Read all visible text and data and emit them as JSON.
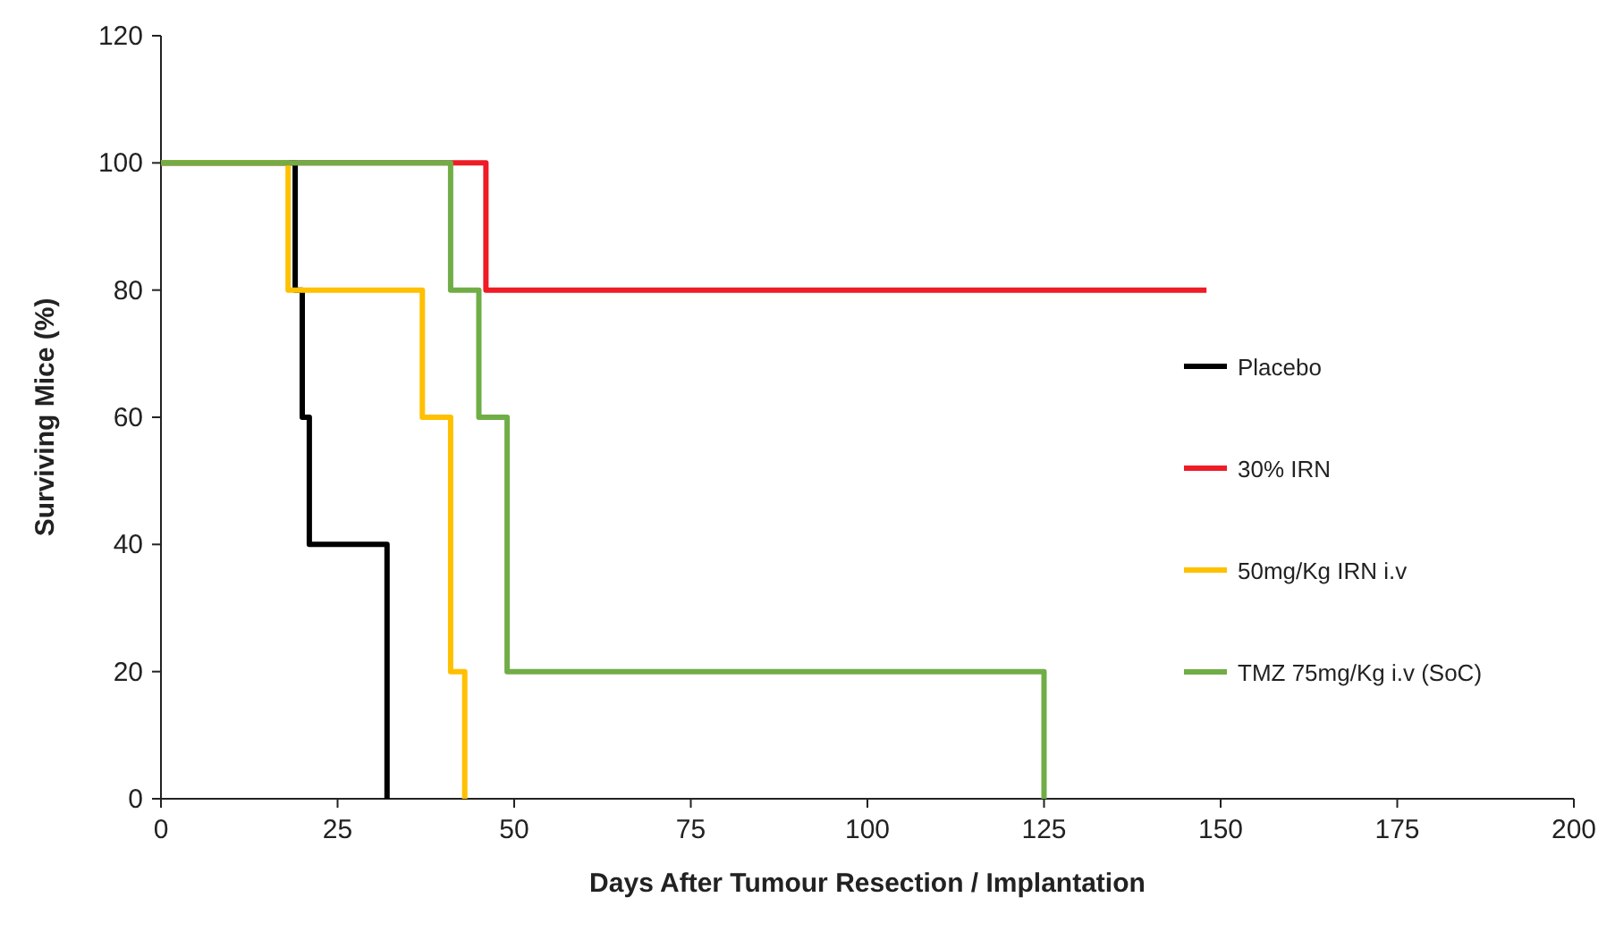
{
  "chart_data": {
    "type": "step",
    "xlabel": "Days After Tumour Resection / Implantation",
    "ylabel": "Surviving Mice (%)",
    "xlim": [
      0,
      200
    ],
    "xticks": [
      0,
      25,
      50,
      75,
      100,
      125,
      150,
      175,
      200
    ],
    "ylim": [
      0,
      120
    ],
    "yticks": [
      0,
      20,
      40,
      60,
      80,
      100,
      120
    ],
    "grid": false,
    "legend": "right",
    "marker": "none",
    "line_style": "solid",
    "series": [
      {
        "name": "Placebo",
        "color": "#000000",
        "x": [
          0,
          19,
          20,
          21,
          32
        ],
        "values": [
          100,
          80,
          60,
          40,
          0
        ]
      },
      {
        "name": "30% IRN",
        "color": "#ee1c25",
        "x": [
          0,
          46,
          148
        ],
        "values": [
          100,
          80,
          80
        ]
      },
      {
        "name": "50mg/Kg IRN i.v",
        "color": "#ffc000",
        "x": [
          0,
          18,
          37,
          41,
          43
        ],
        "values": [
          100,
          80,
          60,
          20,
          0
        ]
      },
      {
        "name": "TMZ 75mg/Kg i.v (SoC)",
        "color": "#70ad47",
        "x": [
          0,
          41,
          45,
          49,
          125
        ],
        "values": [
          100,
          80,
          60,
          20,
          0
        ]
      }
    ]
  }
}
